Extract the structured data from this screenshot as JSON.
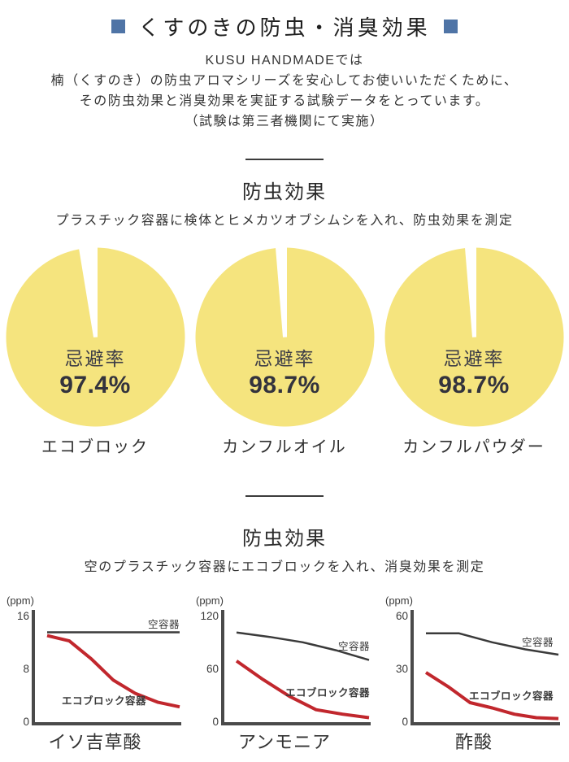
{
  "page": {
    "title": "くすのきの防虫・消臭効果",
    "accent_blue": "#4F74A6",
    "intro_lines": [
      "KUSU HANDMADEでは",
      "楠（くすのき）の防虫アロマシリーズを安心してお使いいただくために、",
      "その防虫効果と消臭効果を実証する試験データをとっています。",
      "（試験は第三者機関にて実施）"
    ]
  },
  "sections": [
    {
      "heading": "防虫効果",
      "subtitle": "プラスチック容器に検体とヒメカツオブシムシを入れ、防虫効果を測定"
    },
    {
      "heading": "防虫効果",
      "subtitle": "空のプラスチック容器にエコブロックを入れ、消臭効果を測定"
    }
  ],
  "chart_data": [
    {
      "type": "pie",
      "title": "エコブロック",
      "center_label": "忌避率",
      "value_label": "97.4%",
      "value_pct": 97.4,
      "slice_color": "#F5E47E",
      "gap_color": "#FFFFFF"
    },
    {
      "type": "pie",
      "title": "カンフルオイル",
      "center_label": "忌避率",
      "value_label": "98.7%",
      "value_pct": 98.7,
      "slice_color": "#F5E47E",
      "gap_color": "#FFFFFF"
    },
    {
      "type": "pie",
      "title": "カンフルパウダー",
      "center_label": "忌避率",
      "value_label": "98.7%",
      "value_pct": 98.7,
      "slice_color": "#F5E47E",
      "gap_color": "#FFFFFF"
    },
    {
      "type": "line",
      "title": "イソ吉草酸",
      "unit": "(ppm)",
      "ylabel": "(ppm)",
      "ylim": [
        0,
        16
      ],
      "yticks": [
        16,
        8,
        0
      ],
      "grid": false,
      "series": [
        {
          "name": "空容器",
          "color": "#3A3A3A",
          "values": [
            13.5,
            13.5,
            13.5,
            13.5,
            13.5,
            13.5,
            13.5
          ]
        },
        {
          "name": "エコブロック容器",
          "color": "#C1272D",
          "values": [
            13,
            12.2,
            9.5,
            6.3,
            4.3,
            3,
            2.3
          ]
        }
      ]
    },
    {
      "type": "line",
      "title": "アンモニア",
      "unit": "(ppm)",
      "ylabel": "(ppm)",
      "ylim": [
        0,
        120
      ],
      "yticks": [
        120,
        60,
        0
      ],
      "grid": false,
      "series": [
        {
          "name": "空容器",
          "color": "#3A3A3A",
          "values": [
            101,
            96,
            90,
            81,
            70
          ]
        },
        {
          "name": "エコブロック容器",
          "color": "#C1272D",
          "values": [
            69,
            48,
            29,
            14,
            9,
            5
          ]
        }
      ]
    },
    {
      "type": "line",
      "title": "酢酸",
      "unit": "(ppm)",
      "ylabel": "(ppm)",
      "ylim": [
        0,
        60
      ],
      "yticks": [
        60,
        30,
        0
      ],
      "grid": false,
      "series": [
        {
          "name": "空容器",
          "color": "#3A3A3A",
          "values": [
            50,
            50,
            45,
            41,
            38
          ]
        },
        {
          "name": "エコブロック容器",
          "color": "#C1272D",
          "values": [
            28,
            20,
            11,
            8,
            4.5,
            2.5,
            2
          ]
        }
      ]
    }
  ]
}
